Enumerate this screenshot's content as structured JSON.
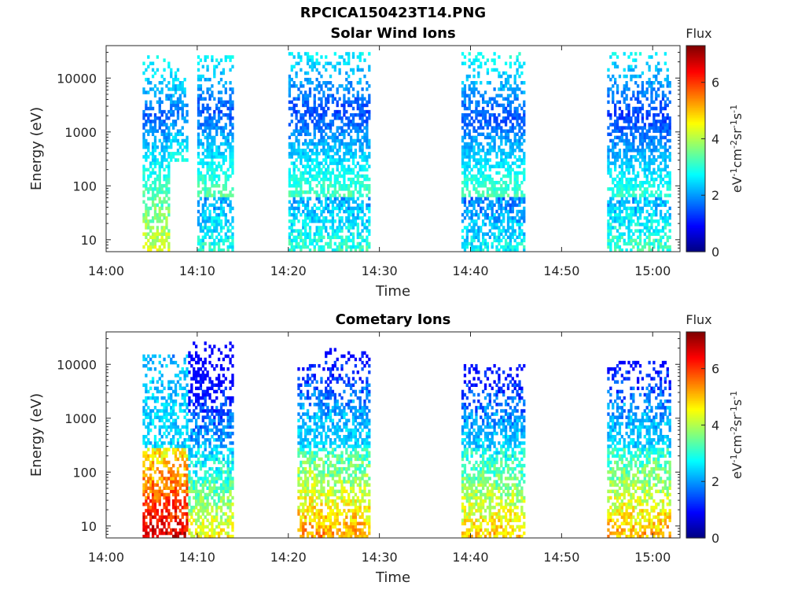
{
  "figure_title": "RPCICA150423T14.PNG",
  "chart_data": [
    {
      "type": "heatmap",
      "title": "Solar Wind Ions",
      "xlabel": "Time",
      "ylabel": "Energy (eV)",
      "x_ticks": [
        "14:00",
        "14:10",
        "14:20",
        "14:30",
        "14:40",
        "14:50",
        "15:00"
      ],
      "x_range": [
        "14:00",
        "15:03"
      ],
      "y_scale": "log",
      "y_ticks": [
        10,
        100,
        1000,
        10000
      ],
      "y_tick_labels": [
        "10",
        "100",
        "1000",
        "10000"
      ],
      "y_range": [
        6,
        40000
      ],
      "colorbar": {
        "title": "Flux",
        "label": "eV-1cm-2sr-1s-1",
        "colormap": "jet",
        "range": [
          0,
          7.3
        ],
        "ticks": [
          0,
          2,
          4,
          6
        ],
        "tick_labels": [
          "0",
          "2",
          "4",
          "6"
        ]
      },
      "bursts": [
        {
          "start": "14:04",
          "end": "14:07",
          "e_min": 6,
          "e_max": 25000,
          "peak_energy": 2000,
          "peak_flux": 1.6,
          "low_energy_flux": 4.3
        },
        {
          "start": "14:07",
          "end": "14:09",
          "e_min": 300,
          "e_max": 15000,
          "peak_energy": 2500,
          "peak_flux": 1.8,
          "low_energy_flux": 3.0
        },
        {
          "start": "14:10",
          "end": "14:14",
          "e_min": 6,
          "e_max": 25000,
          "peak_energy": 2500,
          "peak_flux": 1.5,
          "low_energy_flux": 3.0
        },
        {
          "start": "14:20",
          "end": "14:29",
          "e_min": 6,
          "e_max": 30000,
          "peak_energy": 2500,
          "peak_flux": 1.4,
          "low_energy_flux": 3.1
        },
        {
          "start": "14:39",
          "end": "14:46",
          "e_min": 6,
          "e_max": 30000,
          "peak_energy": 2000,
          "peak_flux": 1.5,
          "low_energy_flux": 2.8
        },
        {
          "start": "14:55",
          "end": "15:02",
          "e_min": 6,
          "e_max": 30000,
          "peak_energy": 2000,
          "peak_flux": 1.3,
          "low_energy_flux": 3.2
        }
      ]
    },
    {
      "type": "heatmap",
      "title": "Cometary Ions",
      "xlabel": "Time",
      "ylabel": "Energy (eV)",
      "x_ticks": [
        "14:00",
        "14:10",
        "14:20",
        "14:30",
        "14:40",
        "14:50",
        "15:00"
      ],
      "x_range": [
        "14:00",
        "15:03"
      ],
      "y_scale": "log",
      "y_ticks": [
        10,
        100,
        1000,
        10000
      ],
      "y_tick_labels": [
        "10",
        "100",
        "1000",
        "10000"
      ],
      "y_range": [
        6,
        40000
      ],
      "colorbar": {
        "title": "Flux",
        "label": "eV-1cm-2sr-1s-1",
        "colormap": "jet",
        "range": [
          0,
          7.3
        ],
        "ticks": [
          0,
          2,
          4,
          6
        ],
        "tick_labels": [
          "0",
          "2",
          "4",
          "6"
        ]
      },
      "bursts": [
        {
          "start": "14:04",
          "end": "14:09",
          "e_min": 6,
          "e_max": 15000,
          "peak_energy": 8,
          "peak_flux": 6.8,
          "low_energy_flux": 6.8
        },
        {
          "start": "14:09",
          "end": "14:14",
          "e_min": 6,
          "e_max": 25000,
          "peak_energy": 10,
          "peak_flux": 4.6,
          "low_energy_flux": 4.6
        },
        {
          "start": "14:21",
          "end": "14:24",
          "e_min": 6,
          "e_max": 10000,
          "peak_energy": 15,
          "peak_flux": 5.4,
          "low_energy_flux": 5.4
        },
        {
          "start": "14:24",
          "end": "14:29",
          "e_min": 6,
          "e_max": 20000,
          "peak_energy": 15,
          "peak_flux": 5.3,
          "low_energy_flux": 5.3
        },
        {
          "start": "14:39",
          "end": "14:46",
          "e_min": 6,
          "e_max": 10000,
          "peak_energy": 12,
          "peak_flux": 5.0,
          "low_energy_flux": 5.0
        },
        {
          "start": "14:55",
          "end": "15:02",
          "e_min": 6,
          "e_max": 12000,
          "peak_energy": 12,
          "peak_flux": 5.2,
          "low_energy_flux": 5.2
        }
      ]
    }
  ]
}
